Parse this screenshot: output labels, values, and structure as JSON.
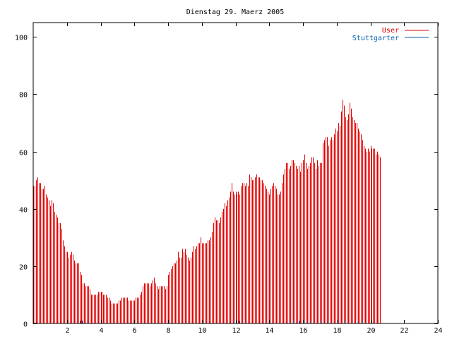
{
  "chart_data": {
    "type": "bar",
    "title": "Dienstag 29. Maerz 2005",
    "xlabel": "",
    "ylabel": "",
    "xlim": [
      0,
      24
    ],
    "ylim": [
      0,
      105
    ],
    "x_ticks": [
      2,
      4,
      6,
      8,
      10,
      12,
      14,
      16,
      18,
      20,
      22,
      24
    ],
    "x_tick_labels": [
      "2",
      "4",
      "6",
      "8",
      "10",
      "12",
      "14",
      "16",
      "18",
      "20",
      "22",
      "24"
    ],
    "y_ticks": [
      0,
      20,
      40,
      60,
      80,
      100
    ],
    "y_tick_labels": [
      "0",
      "20",
      "40",
      "60",
      "80",
      "100"
    ],
    "grid": false,
    "legend_position": "top-right",
    "colors": {
      "User": "#e00000",
      "Stuttgarter": "#0060b0",
      "axis": "#000000"
    },
    "series": [
      {
        "name": "User",
        "interval_minutes": 5,
        "values": [
          48,
          48,
          50,
          51,
          49,
          49,
          47,
          47,
          48,
          45,
          44,
          43,
          41,
          43,
          42,
          39,
          38,
          37,
          35,
          35,
          33,
          29,
          27,
          25,
          25,
          23,
          24,
          25,
          24,
          22,
          21,
          21,
          21,
          18,
          17,
          14,
          14,
          13,
          13,
          13,
          12,
          10,
          10,
          10,
          10,
          10,
          11,
          11,
          11,
          11,
          10,
          10,
          10,
          9,
          9,
          8,
          7,
          7,
          7,
          7,
          7,
          8,
          8,
          9,
          9,
          9,
          9,
          9,
          8,
          8,
          8,
          8,
          8,
          9,
          9,
          9,
          10,
          11,
          13,
          14,
          14,
          14,
          14,
          13,
          14,
          15,
          16,
          14,
          13,
          12,
          13,
          13,
          13,
          13,
          12,
          13,
          17,
          18,
          19,
          20,
          21,
          21,
          22,
          25,
          23,
          23,
          26,
          25,
          26,
          24,
          23,
          22,
          23,
          25,
          27,
          26,
          27,
          28,
          28,
          30,
          28,
          28,
          28,
          28,
          29,
          29,
          30,
          32,
          35,
          37,
          36,
          36,
          35,
          37,
          39,
          40,
          42,
          41,
          43,
          44,
          46,
          49,
          46,
          45,
          46,
          45,
          46,
          45,
          48,
          49,
          49,
          48,
          49,
          48,
          52,
          51,
          50,
          50,
          51,
          52,
          51,
          51,
          50,
          50,
          49,
          48,
          47,
          46,
          45,
          47,
          48,
          49,
          48,
          47,
          45,
          45,
          46,
          49,
          52,
          54,
          56,
          56,
          54,
          55,
          57,
          57,
          56,
          55,
          54,
          55,
          53,
          56,
          57,
          59,
          56,
          54,
          55,
          56,
          58,
          58,
          56,
          54,
          57,
          55,
          56,
          56,
          63,
          64,
          65,
          65,
          62,
          64,
          65,
          64,
          66,
          68,
          67,
          70,
          69,
          74,
          78,
          76,
          72,
          71,
          73,
          77,
          75,
          72,
          71,
          70,
          70,
          68,
          67,
          66,
          64,
          62,
          61,
          60,
          61,
          60,
          62,
          61,
          61,
          61,
          59,
          60,
          59,
          58
        ]
      },
      {
        "name": "Stuttgarter",
        "points": [
          [
            2.8,
            1
          ],
          [
            2.9,
            1
          ],
          [
            11.95,
            1
          ],
          [
            12.2,
            1
          ],
          [
            12.5,
            1
          ],
          [
            15.4,
            1
          ],
          [
            15.8,
            1
          ],
          [
            16.1,
            1
          ],
          [
            16.5,
            1
          ],
          [
            17.0,
            1
          ],
          [
            17.5,
            1
          ],
          [
            18.0,
            1
          ],
          [
            18.5,
            1
          ],
          [
            19.2,
            1
          ],
          [
            19.5,
            1
          ]
        ]
      }
    ]
  }
}
